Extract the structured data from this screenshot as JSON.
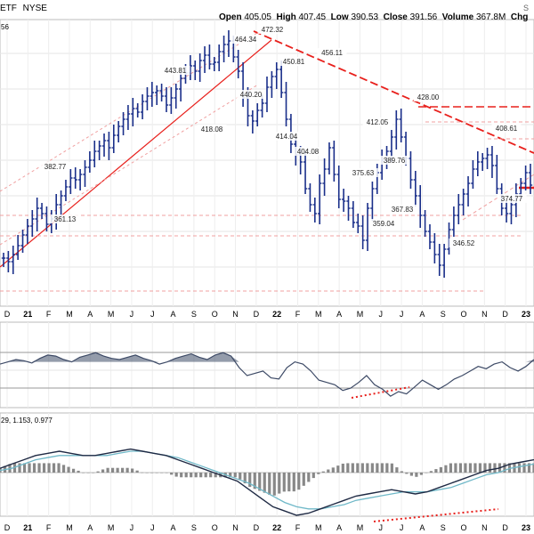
{
  "header": {
    "title_fragment": "ETF",
    "exchange": "NYSE",
    "open_label": "Open",
    "open": "405.05",
    "high_label": "High",
    "high": "407.45",
    "low_label": "Low",
    "low": "390.53",
    "close_label": "Close",
    "close": "391.56",
    "volume_label": "Volume",
    "volume": "367.8M",
    "chg_label": "Chg",
    "left_edge_fragment": "56",
    "corner_fragment": "S"
  },
  "x_axis_labels": [
    "D",
    "21",
    "F",
    "M",
    "A",
    "M",
    "J",
    "J",
    "A",
    "S",
    "O",
    "N",
    "D",
    "22",
    "F",
    "M",
    "A",
    "M",
    "J",
    "J",
    "A",
    "S",
    "O",
    "N",
    "D",
    "23"
  ],
  "colors": {
    "price_bar": "#1a2f8a",
    "trend_red": "#e8201c",
    "dashed_pink": "#f0a0a0",
    "rsi_line": "#3d4a66",
    "macd_line": "#1f2a44",
    "signal_line": "#6fb8c8",
    "histogram": "#888888",
    "divergence": "#e8201c"
  },
  "chart_data": [
    {
      "type": "line",
      "series": [
        {
          "values": [
            350,
            348,
            352,
            357,
            363,
            368,
            372,
            378,
            375,
            369,
            372,
            380,
            385,
            390,
            395,
            394,
            397,
            401,
            405,
            410,
            413,
            416,
            412,
            419,
            424,
            428,
            431,
            434,
            432,
            438,
            441,
            443,
            444,
            441,
            436,
            440,
            445,
            451,
            454,
            458,
            455,
            461,
            464,
            459,
            460,
            466,
            470,
            472,
            463,
            455,
            440,
            430,
            427,
            433,
            437,
            446,
            452,
            456,
            443,
            428,
            414,
            408,
            404,
            389,
            380,
            375,
            392,
            400,
            412,
            397,
            383,
            382,
            378,
            370,
            368,
            360,
            378,
            389,
            398,
            405,
            410,
            418,
            428,
            418,
            406,
            394,
            385,
            374,
            365,
            359,
            352,
            346,
            355,
            366,
            374,
            380,
            386,
            392,
            400,
            404,
            406,
            408,
            402,
            389,
            378,
            375,
            380,
            386,
            392,
            398,
            391
          ],
          "labels_printed": [
            "382.77",
            "361.13",
            "443.81",
            "418.08",
            "464.34",
            "440.20",
            "472.32",
            "450.81",
            "414.04",
            "404.08",
            "456.11",
            "412.05",
            "375.63",
            "389.76",
            "367.83",
            "359.04",
            "428.00",
            "346.52",
            "408.61",
            "374.77"
          ]
        }
      ]
    },
    {
      "type": "line",
      "series": [
        {
          "values": [
            58,
            60,
            62,
            61,
            59,
            63,
            66,
            65,
            62,
            60,
            64,
            66,
            68,
            65,
            63,
            62,
            64,
            66,
            63,
            61,
            58,
            60,
            63,
            65,
            67,
            64,
            62,
            66,
            68,
            65,
            55,
            48,
            50,
            52,
            46,
            45,
            55,
            60,
            58,
            52,
            44,
            42,
            40,
            35,
            37,
            42,
            48,
            40,
            36,
            30,
            34,
            32,
            38,
            44,
            40,
            36,
            40,
            45,
            48,
            52,
            56,
            54,
            58,
            60,
            55,
            52,
            56,
            62
          ]
        }
      ]
    },
    {
      "type": "line",
      "legend_text": "29, 1.153, 0.977",
      "series": [
        {
          "values": [
            2,
            4,
            6,
            8,
            9,
            10,
            9,
            8,
            8,
            9,
            10,
            11,
            10,
            9,
            8,
            6,
            4,
            2,
            0,
            -2,
            -4,
            -8,
            -12,
            -16,
            -18,
            -20,
            -19,
            -17,
            -15,
            -13,
            -11,
            -10,
            -9,
            -8,
            -9,
            -10,
            -9,
            -7,
            -5,
            -3,
            -1,
            1,
            2,
            4,
            5,
            6
          ]
        },
        {
          "values": [
            1,
            2,
            4,
            6,
            7,
            8,
            8,
            8,
            8,
            8,
            9,
            10,
            10,
            9,
            8,
            7,
            5,
            3,
            1,
            -1,
            -3,
            -5,
            -8,
            -11,
            -14,
            -16,
            -17,
            -17,
            -16,
            -15,
            -13,
            -12,
            -11,
            -10,
            -9,
            -9,
            -9,
            -8,
            -7,
            -5,
            -3,
            -1,
            0,
            2,
            3,
            4
          ]
        }
      ]
    }
  ]
}
